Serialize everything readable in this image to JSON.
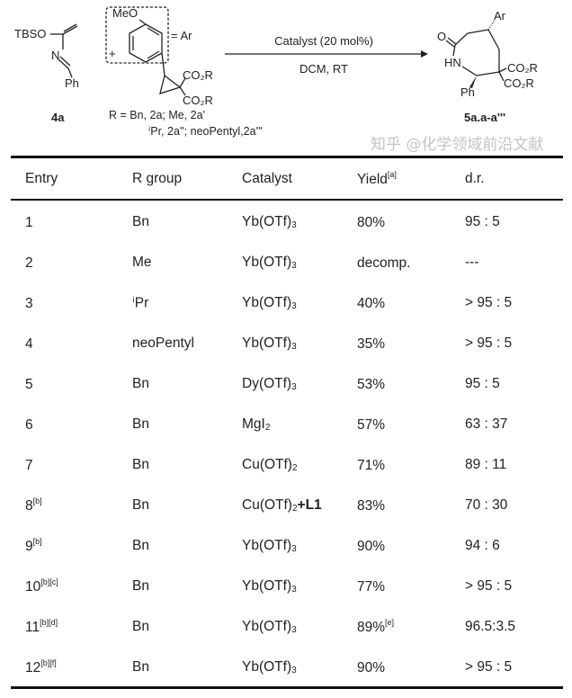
{
  "scheme": {
    "reactant1": {
      "tbso": "TBSO",
      "n": "N",
      "ph": "Ph",
      "label": "4a"
    },
    "plus": "+",
    "reactant2": {
      "meo": "MeO",
      "ar_def": "= Ar",
      "co2r_1": "CO₂R",
      "co2r_2": "CO₂R",
      "r_line1": "R = Bn, 2a; Me, 2a'",
      "r_line2": "ⁱPr, 2a''; neoPentyl,2a'''"
    },
    "conditions": {
      "above": "Catalyst (20 mol%)",
      "below": "DCM, RT"
    },
    "product": {
      "o": "O",
      "ar": "Ar",
      "hn": "HN",
      "ph": "Ph",
      "co2r_1": "CO₂R",
      "co2r_2": "CO₂R",
      "label": "5a.a-a'''"
    }
  },
  "table": {
    "headers": {
      "entry": "Entry",
      "r_group": "R group",
      "catalyst": "Catalyst",
      "yield": "Yield",
      "yield_note": "[a]",
      "dr": "d.r."
    },
    "rows": [
      {
        "entry": "1",
        "note": "",
        "r": "Bn",
        "cat": "Yb(OTf)",
        "sub": "3",
        "extra": "",
        "yield": "80%",
        "ynote": "",
        "dr": "95 : 5"
      },
      {
        "entry": "2",
        "note": "",
        "r": "Me",
        "cat": "Yb(OTf)",
        "sub": "3",
        "extra": "",
        "yield": "decomp.",
        "ynote": "",
        "dr": "---"
      },
      {
        "entry": "3",
        "note": "",
        "r": "ⁱPr",
        "cat": "Yb(OTf)",
        "sub": "3",
        "extra": "",
        "yield": "40%",
        "ynote": "",
        "dr": "> 95 : 5"
      },
      {
        "entry": "4",
        "note": "",
        "r": "neoPentyl",
        "cat": "Yb(OTf)",
        "sub": "3",
        "extra": "",
        "yield": "35%",
        "ynote": "",
        "dr": "> 95 : 5"
      },
      {
        "entry": "5",
        "note": "",
        "r": "Bn",
        "cat": "Dy(OTf)",
        "sub": "3",
        "extra": "",
        "yield": "53%",
        "ynote": "",
        "dr": "95 : 5"
      },
      {
        "entry": "6",
        "note": "",
        "r": "Bn",
        "cat": "MgI",
        "sub": "2",
        "extra": "",
        "yield": "57%",
        "ynote": "",
        "dr": "63 : 37"
      },
      {
        "entry": "7",
        "note": "",
        "r": "Bn",
        "cat": "Cu(OTf)",
        "sub": "2",
        "extra": "",
        "yield": "71%",
        "ynote": "",
        "dr": "89 : 11"
      },
      {
        "entry": "8",
        "note": "[b]",
        "r": "Bn",
        "cat": "Cu(OTf)",
        "sub": "2",
        "extra": "+L1",
        "yield": "83%",
        "ynote": "",
        "dr": "70 : 30"
      },
      {
        "entry": "9",
        "note": "[b]",
        "r": "Bn",
        "cat": "Yb(OTf)",
        "sub": "3",
        "extra": "",
        "yield": "90%",
        "ynote": "",
        "dr": "94 : 6"
      },
      {
        "entry": "10",
        "note": "[b][c]",
        "r": "Bn",
        "cat": "Yb(OTf)",
        "sub": "3",
        "extra": "",
        "yield": "77%",
        "ynote": "",
        "dr": "> 95 : 5"
      },
      {
        "entry": "11",
        "note": "[b][d]",
        "r": "Bn",
        "cat": "Yb(OTf)",
        "sub": "3",
        "extra": "",
        "yield": "89%",
        "ynote": "[e]",
        "dr": "96.5:3.5"
      },
      {
        "entry": "12",
        "note": "[b][f]",
        "r": "Bn",
        "cat": "Yb(OTf)",
        "sub": "3",
        "extra": "",
        "yield": "90%",
        "ynote": "",
        "dr": "> 95 : 5"
      }
    ]
  },
  "watermark": "知乎 @化学领域前沿文献"
}
